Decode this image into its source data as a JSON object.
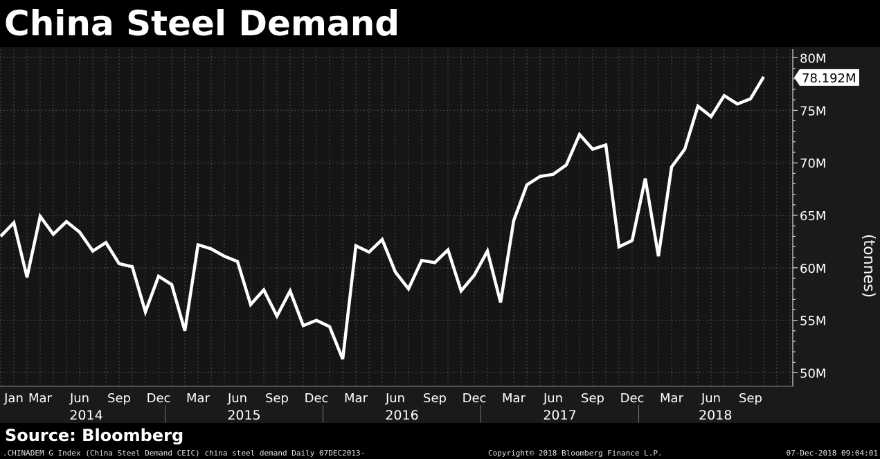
{
  "title": "China Steel Demand",
  "source": "Source: Bloomberg",
  "footer": {
    "left": ".CHINADEM G Index (China Steel Demand CEIC) china steel demand  Daily 07DEC2013-",
    "middle": "Copyright© 2018 Bloomberg Finance L.P.",
    "right": "07-Dec-2018 09:04:01"
  },
  "colors": {
    "background": "#000000",
    "plot_background": "#1a1a1a",
    "line": "#ffffff",
    "grid": "#555555"
  },
  "chart_data": {
    "type": "line",
    "title": "China Steel Demand",
    "ylabel": "(tonnes)",
    "ylim": [
      49,
      82
    ],
    "y_ticks": [
      50,
      55,
      60,
      65,
      70,
      75,
      80
    ],
    "y_tick_labels": [
      "50M",
      "55M",
      "60M",
      "65M",
      "70M",
      "75M",
      "80M"
    ],
    "x_ticks": [
      "2014-01",
      "2014-03",
      "2014-06",
      "2014-09",
      "2014-12",
      "2015-03",
      "2015-06",
      "2015-09",
      "2015-12",
      "2016-03",
      "2016-06",
      "2016-09",
      "2016-12",
      "2017-03",
      "2017-06",
      "2017-09",
      "2017-12",
      "2018-03",
      "2018-06",
      "2018-09"
    ],
    "x_tick_labels": [
      "Jan",
      "Mar",
      "Jun",
      "Sep",
      "Dec",
      "Mar",
      "Jun",
      "Sep",
      "Dec",
      "Mar",
      "Jun",
      "Sep",
      "Dec",
      "Mar",
      "Jun",
      "Sep",
      "Dec",
      "Mar",
      "Jun",
      "Sep"
    ],
    "years": [
      "2014",
      "2015",
      "2016",
      "2017",
      "2018"
    ],
    "grid": true,
    "last_value_label": "78.192M",
    "series": [
      {
        "x": [
          "2013-12",
          "2014-01",
          "2014-02",
          "2014-03",
          "2014-04",
          "2014-05",
          "2014-06",
          "2014-07",
          "2014-08",
          "2014-09",
          "2014-10",
          "2014-11",
          "2014-12",
          "2015-01",
          "2015-02",
          "2015-03",
          "2015-04",
          "2015-05",
          "2015-06",
          "2015-07",
          "2015-08",
          "2015-09",
          "2015-10",
          "2015-11",
          "2015-12",
          "2016-01",
          "2016-02",
          "2016-03",
          "2016-04",
          "2016-05",
          "2016-06",
          "2016-07",
          "2016-08",
          "2016-09",
          "2016-10",
          "2016-11",
          "2016-12",
          "2017-01",
          "2017-02",
          "2017-03",
          "2017-04",
          "2017-05",
          "2017-06",
          "2017-07",
          "2017-08",
          "2017-09",
          "2017-10",
          "2017-11",
          "2017-12",
          "2018-01",
          "2018-02",
          "2018-03",
          "2018-04",
          "2018-05",
          "2018-06",
          "2018-07",
          "2018-08",
          "2018-09",
          "2018-10"
        ],
        "values": [
          63.0,
          64.3,
          59.1,
          64.9,
          63.2,
          64.4,
          63.4,
          61.6,
          62.4,
          60.4,
          60.1,
          55.8,
          59.2,
          58.4,
          54.0,
          62.2,
          61.8,
          61.1,
          60.6,
          56.5,
          57.9,
          55.4,
          57.8,
          54.5,
          55.0,
          54.4,
          51.3,
          62.1,
          61.5,
          62.7,
          59.6,
          58.0,
          60.7,
          60.5,
          61.7,
          57.8,
          59.3,
          61.6,
          56.7,
          64.5,
          67.9,
          68.7,
          68.9,
          69.8,
          72.7,
          71.3,
          71.7,
          62.0,
          62.6,
          68.5,
          61.1,
          69.6,
          71.3,
          75.4,
          74.4,
          76.4,
          75.6,
          76.1,
          78.192
        ]
      }
    ]
  }
}
